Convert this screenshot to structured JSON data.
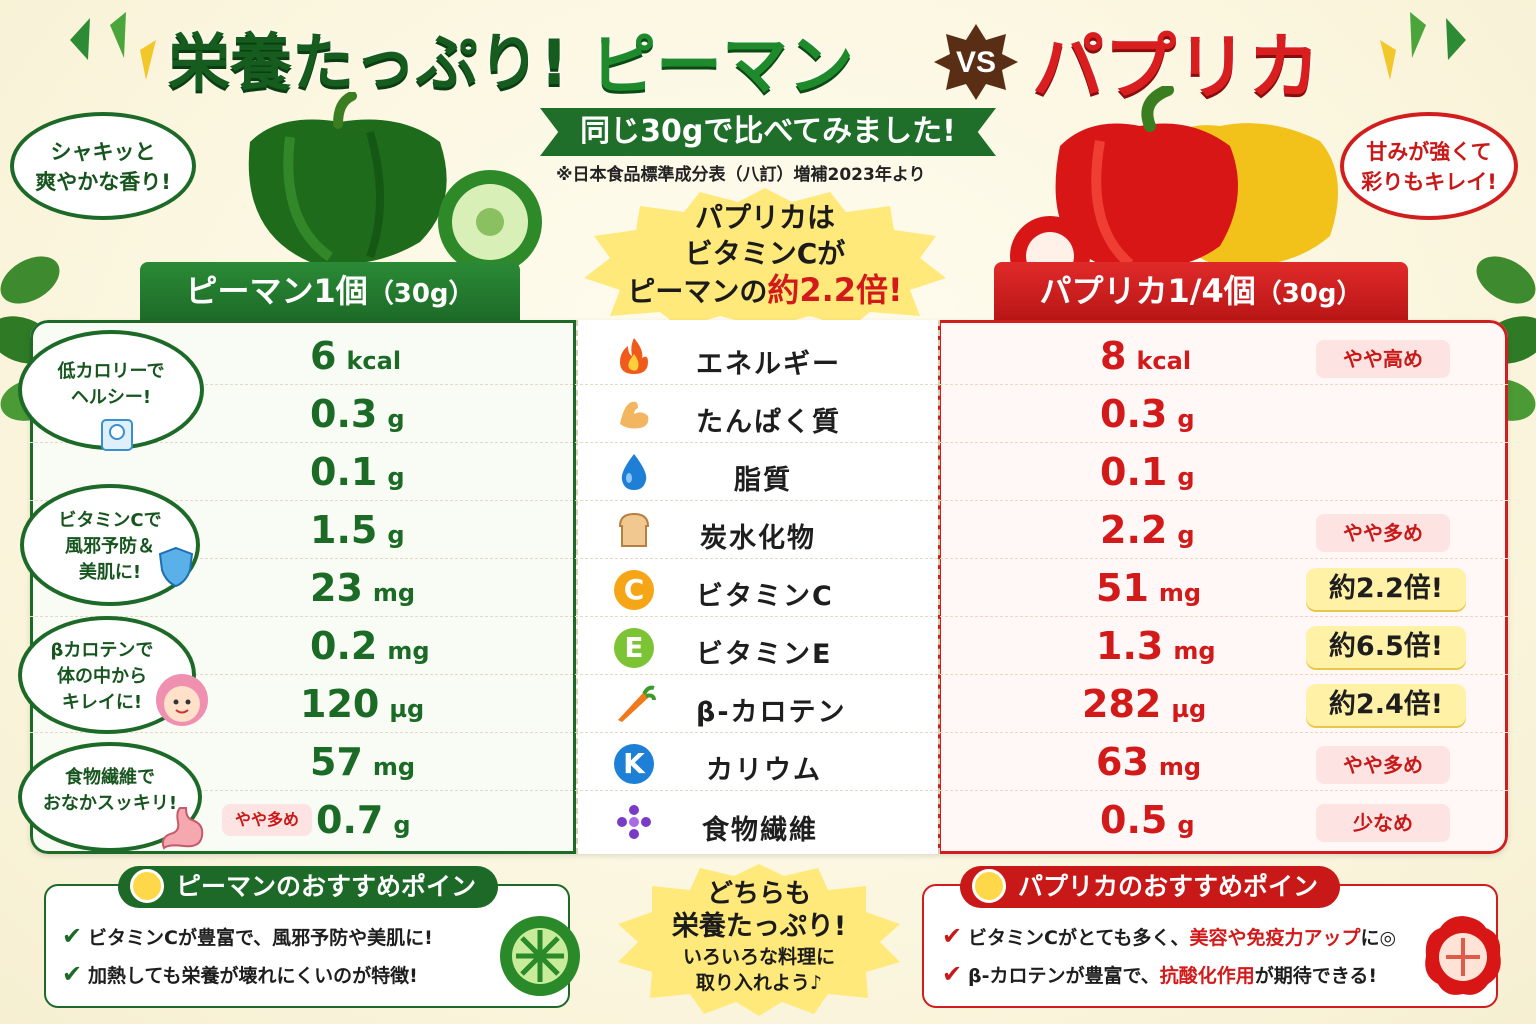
{
  "title": {
    "part1": "栄養たっぷり!",
    "part2": "ピーマン",
    "vs": "VS",
    "part3": "パプリカ"
  },
  "subtitle": "同じ30gで比べてみました!",
  "source": "※日本食品標準成分表（八訂）増補2023年より",
  "center_burst": {
    "line1": "パプリカは",
    "line2": "ビタミンCが",
    "line3_prefix": "ピーマンの",
    "line3_highlight": "約2.2倍!"
  },
  "bubbles": {
    "piman_aroma": [
      "シャキッと",
      "爽やかな香り!"
    ],
    "paprika_sweet": [
      "甘みが強くて",
      "彩りもキレイ!"
    ],
    "lowcal": [
      "低カロリーで",
      "ヘルシー!"
    ],
    "vitc": [
      "ビタミンCで",
      "風邪予防＆",
      "美肌に!"
    ],
    "carotene": [
      "βカロテンで",
      "体の中から",
      "キレイに!"
    ],
    "fiber": [
      "食物繊維で",
      "おなかスッキリ!"
    ]
  },
  "headers": {
    "piman": "ピーマン1個",
    "piman_weight": "（30g）",
    "paprika": "パプリカ1/4個",
    "paprika_weight": "（30g）"
  },
  "rows": [
    {
      "name": "エネルギー",
      "icon": "fire-icon",
      "piman": "6",
      "piman_unit": "kcal",
      "paprika": "8",
      "paprika_unit": "kcal",
      "tag": "やや高め",
      "tag_style": "pink"
    },
    {
      "name": "たんぱく質",
      "icon": "muscle-icon",
      "piman": "0.3",
      "piman_unit": "g",
      "paprika": "0.3",
      "paprika_unit": "g",
      "tag": "",
      "tag_style": ""
    },
    {
      "name": "脂質",
      "icon": "water-drop-icon",
      "piman": "0.1",
      "piman_unit": "g",
      "paprika": "0.1",
      "paprika_unit": "g",
      "tag": "",
      "tag_style": ""
    },
    {
      "name": "炭水化物",
      "icon": "bread-icon",
      "piman": "1.5",
      "piman_unit": "g",
      "paprika": "2.2",
      "paprika_unit": "g",
      "tag": "やや多め",
      "tag_style": "pink"
    },
    {
      "name": "ビタミンC",
      "icon": "vitamin-c-icon",
      "piman": "23",
      "piman_unit": "mg",
      "paprika": "51",
      "paprika_unit": "mg",
      "tag": "約2.2倍!",
      "tag_style": "gold"
    },
    {
      "name": "ビタミンE",
      "icon": "vitamin-e-icon",
      "piman": "0.2",
      "piman_unit": "mg",
      "paprika": "1.3",
      "paprika_unit": "mg",
      "tag": "約6.5倍!",
      "tag_style": "gold"
    },
    {
      "name": "β-カロテン",
      "icon": "carrot-icon",
      "piman": "120",
      "piman_unit": "µg",
      "paprika": "282",
      "paprika_unit": "µg",
      "tag": "約2.4倍!",
      "tag_style": "gold"
    },
    {
      "name": "カリウム",
      "icon": "potassium-k-icon",
      "piman": "57",
      "piman_unit": "mg",
      "paprika": "63",
      "paprika_unit": "mg",
      "tag": "やや多め",
      "tag_style": "pink"
    },
    {
      "name": "食物繊維",
      "icon": "fiber-dots-icon",
      "piman": "0.7",
      "piman_unit": "g",
      "paprika": "0.5",
      "paprika_unit": "g",
      "tag": "少なめ",
      "tag_style": "pink"
    }
  ],
  "piman_fiber_tag": "やや多め",
  "cards": {
    "piman": {
      "title": "ピーマンのおすすめポイント",
      "points": [
        "ビタミンCが豊富で、風邪予防や美肌に!",
        "加熱しても栄養が壊れにくいのが特徴!"
      ]
    },
    "paprika": {
      "title": "パプリカのおすすめポイント",
      "p1_a": "ビタミンCがとても多く、",
      "p1_b": "美容や免疫力アップ",
      "p1_c": "に◎",
      "p2_a": "β-カロテンが豊富で、",
      "p2_b": "抗酸化作用",
      "p2_c": "が期待できる!"
    }
  },
  "bottom_burst": {
    "line1": "どちらも",
    "line2": "栄養たっぷり!",
    "line3": "いろいろな料理に",
    "line4": "取り入れよう♪"
  },
  "colors": {
    "green": "#1d6a28",
    "red": "#d11d1d",
    "gold": "#ffe56a",
    "cream": "#fbf6df"
  }
}
